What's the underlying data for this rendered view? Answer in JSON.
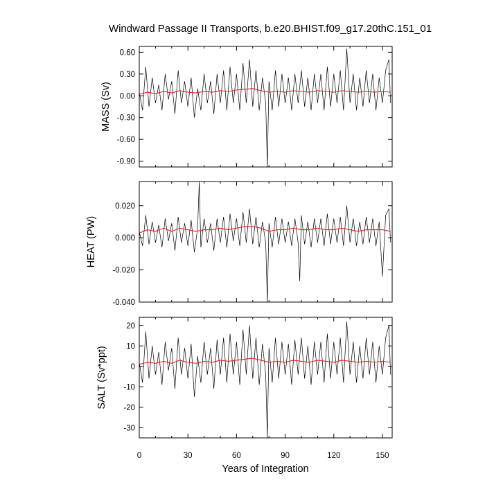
{
  "chart_data": {
    "type": "line",
    "title": "Windward Passage II Transports, b.e20.BHIST.f09_g17.20thC.151_01",
    "xlabel": "Years of Integration",
    "xlim": [
      0,
      156
    ],
    "xticks": [
      0,
      30,
      60,
      90,
      120,
      150
    ],
    "xtick_labels": [
      "0",
      "30",
      "60",
      "90",
      "120",
      "150"
    ],
    "grid": false,
    "panels": [
      {
        "ylabel": "MASS (Sv)",
        "ylim": [
          -0.98,
          0.68
        ],
        "yticks": [
          0.6,
          0.3,
          0.0,
          -0.3,
          -0.6,
          -0.9
        ],
        "ytick_labels": [
          "0.60",
          "0.30",
          "0.00",
          "-0.30",
          "-0.60",
          "-0.90"
        ],
        "series": [
          {
            "color": "#000000",
            "x": [
              0,
              2,
              4,
              6,
              8,
              10,
              12,
              14,
              16,
              18,
              20,
              22,
              24,
              26,
              28,
              30,
              32,
              34,
              36,
              38,
              40,
              42,
              44,
              46,
              48,
              50,
              52,
              54,
              56,
              58,
              60,
              62,
              64,
              66,
              68,
              70,
              72,
              74,
              76,
              78,
              79,
              80,
              82,
              84,
              86,
              88,
              90,
              92,
              94,
              96,
              98,
              100,
              102,
              104,
              106,
              108,
              110,
              112,
              114,
              116,
              118,
              120,
              122,
              124,
              126,
              128,
              130,
              132,
              134,
              136,
              138,
              140,
              142,
              144,
              146,
              148,
              150,
              152,
              154,
              155
            ],
            "y": [
              0.05,
              -0.2,
              0.4,
              -0.15,
              0.25,
              -0.1,
              0.15,
              -0.2,
              0.3,
              -0.05,
              0.2,
              -0.25,
              0.35,
              -0.1,
              0.2,
              -0.15,
              0.25,
              -0.3,
              0.1,
              -0.2,
              0.3,
              -0.1,
              0.2,
              -0.25,
              0.3,
              -0.1,
              0.35,
              -0.2,
              0.4,
              -0.1,
              0.3,
              -0.2,
              0.45,
              -0.1,
              0.5,
              -0.15,
              0.35,
              -0.2,
              0.25,
              -0.1,
              -0.98,
              0.2,
              -0.2,
              0.35,
              -0.15,
              0.3,
              -0.1,
              0.25,
              -0.2,
              0.3,
              -0.1,
              0.35,
              -0.15,
              0.25,
              -0.2,
              0.3,
              -0.1,
              0.3,
              -0.2,
              0.4,
              -0.15,
              0.3,
              -0.1,
              0.35,
              -0.2,
              0.65,
              -0.1,
              0.3,
              -0.2,
              0.25,
              -0.15,
              0.35,
              -0.1,
              0.3,
              -0.2,
              0.25,
              -0.1,
              0.35,
              0.5,
              -0.1
            ]
          },
          {
            "color": "#e32222",
            "x": [
              0,
              5,
              10,
              15,
              20,
              25,
              30,
              35,
              40,
              45,
              50,
              55,
              60,
              65,
              70,
              75,
              80,
              85,
              90,
              95,
              100,
              105,
              110,
              115,
              120,
              125,
              130,
              135,
              140,
              145,
              150,
              155
            ],
            "y": [
              0.02,
              0.05,
              0.03,
              0.06,
              0.04,
              0.07,
              0.05,
              0.04,
              0.06,
              0.05,
              0.07,
              0.06,
              0.08,
              0.09,
              0.1,
              0.07,
              0.05,
              0.06,
              0.05,
              0.07,
              0.06,
              0.05,
              0.07,
              0.06,
              0.05,
              0.07,
              0.06,
              0.05,
              0.06,
              0.05,
              0.06,
              0.05
            ]
          }
        ]
      },
      {
        "ylabel": "HEAT (PW)",
        "ylim": [
          -0.04,
          0.035
        ],
        "yticks": [
          0.02,
          0.0,
          -0.02,
          -0.04
        ],
        "ytick_labels": [
          "0.020",
          "0.000",
          "-0.020",
          "-0.040"
        ],
        "series": [
          {
            "color": "#000000",
            "x": [
              0,
              2,
              4,
              6,
              8,
              10,
              12,
              14,
              16,
              18,
              20,
              22,
              24,
              26,
              28,
              30,
              32,
              34,
              36,
              37,
              38,
              40,
              42,
              44,
              46,
              48,
              50,
              52,
              54,
              56,
              58,
              60,
              62,
              64,
              66,
              68,
              70,
              72,
              74,
              76,
              78,
              79,
              80,
              82,
              84,
              86,
              88,
              90,
              92,
              94,
              96,
              98,
              99,
              100,
              102,
              104,
              106,
              108,
              110,
              112,
              114,
              116,
              118,
              120,
              122,
              124,
              126,
              128,
              130,
              132,
              134,
              136,
              138,
              140,
              142,
              144,
              146,
              148,
              150,
              152,
              154,
              155
            ],
            "y": [
              0.004,
              -0.005,
              0.014,
              -0.004,
              0.01,
              -0.003,
              0.008,
              -0.006,
              0.012,
              -0.002,
              0.009,
              -0.008,
              0.013,
              -0.003,
              0.009,
              -0.005,
              0.011,
              -0.009,
              0.006,
              0.035,
              -0.006,
              0.012,
              -0.003,
              0.009,
              -0.008,
              0.012,
              -0.003,
              0.013,
              -0.006,
              0.015,
              -0.002,
              0.012,
              -0.005,
              0.016,
              -0.003,
              0.018,
              -0.004,
              0.013,
              -0.006,
              0.01,
              -0.003,
              -0.04,
              0.009,
              -0.006,
              0.013,
              -0.004,
              0.012,
              -0.003,
              0.01,
              -0.005,
              0.012,
              -0.003,
              -0.027,
              0.014,
              -0.004,
              0.01,
              -0.006,
              0.012,
              -0.003,
              0.012,
              -0.005,
              0.015,
              -0.004,
              0.012,
              -0.003,
              0.013,
              -0.005,
              0.02,
              -0.003,
              0.012,
              -0.005,
              0.01,
              -0.004,
              0.013,
              -0.003,
              0.012,
              -0.005,
              0.01,
              -0.024,
              0.014,
              0.018,
              -0.003
            ]
          },
          {
            "color": "#e32222",
            "x": [
              0,
              5,
              10,
              15,
              20,
              25,
              30,
              35,
              40,
              45,
              50,
              55,
              60,
              65,
              70,
              75,
              80,
              85,
              90,
              95,
              100,
              105,
              110,
              115,
              120,
              125,
              130,
              135,
              140,
              145,
              150,
              155
            ],
            "y": [
              0.003,
              0.005,
              0.004,
              0.006,
              0.004,
              0.006,
              0.005,
              0.004,
              0.005,
              0.005,
              0.006,
              0.005,
              0.006,
              0.007,
              0.007,
              0.006,
              0.004,
              0.005,
              0.005,
              0.006,
              0.005,
              0.005,
              0.006,
              0.005,
              0.005,
              0.006,
              0.005,
              0.004,
              0.005,
              0.005,
              0.005,
              0.004
            ]
          }
        ]
      },
      {
        "ylabel": "SALT (Sv*ppt)",
        "ylim": [
          -35,
          24
        ],
        "yticks": [
          20,
          10,
          0,
          -10,
          -20,
          -30
        ],
        "ytick_labels": [
          "20",
          "10",
          "0",
          "-10",
          "-20",
          "-30"
        ],
        "series": [
          {
            "color": "#000000",
            "x": [
              0,
              2,
              4,
              6,
              8,
              10,
              12,
              14,
              16,
              18,
              20,
              22,
              24,
              26,
              28,
              30,
              32,
              34,
              36,
              38,
              40,
              42,
              44,
              46,
              48,
              50,
              52,
              54,
              56,
              58,
              60,
              62,
              64,
              66,
              68,
              70,
              72,
              74,
              76,
              78,
              79,
              80,
              82,
              84,
              86,
              88,
              90,
              92,
              94,
              96,
              98,
              100,
              102,
              104,
              106,
              108,
              110,
              112,
              114,
              116,
              118,
              120,
              122,
              124,
              126,
              128,
              130,
              132,
              134,
              136,
              138,
              140,
              142,
              144,
              146,
              148,
              150,
              152,
              154,
              155
            ],
            "y": [
              2,
              -8,
              17,
              -6,
              10,
              -4,
              7,
              -9,
              12,
              -2,
              9,
              -11,
              14,
              -4,
              9,
              -6,
              11,
              -15,
              5,
              -8,
              12,
              -4,
              9,
              -11,
              13,
              -4,
              14,
              -8,
              16,
              -4,
              12,
              -9,
              18,
              -4,
              20,
              -6,
              14,
              -9,
              11,
              -4,
              -35,
              9,
              -8,
              14,
              -6,
              12,
              -4,
              11,
              -9,
              13,
              -4,
              14,
              -6,
              10,
              -9,
              12,
              -4,
              12,
              -8,
              16,
              -6,
              12,
              -4,
              14,
              -8,
              22,
              -4,
              12,
              -8,
              10,
              -6,
              14,
              -4,
              12,
              -8,
              10,
              -4,
              14,
              20,
              -4
            ]
          },
          {
            "color": "#e32222",
            "x": [
              0,
              5,
              10,
              15,
              20,
              25,
              30,
              35,
              40,
              45,
              50,
              55,
              60,
              65,
              70,
              75,
              80,
              85,
              90,
              95,
              100,
              105,
              110,
              115,
              120,
              125,
              130,
              135,
              140,
              145,
              150,
              155
            ],
            "y": [
              1,
              2,
              1.5,
              2.5,
              1.5,
              3,
              2,
              1.5,
              2.5,
              2,
              3,
              2.5,
              3,
              3.5,
              4,
              3,
              2,
              2.5,
              2,
              3,
              2.5,
              2,
              3,
              2.5,
              2,
              3,
              2.5,
              2,
              2.5,
              2,
              2.5,
              2
            ]
          }
        ]
      }
    ]
  }
}
